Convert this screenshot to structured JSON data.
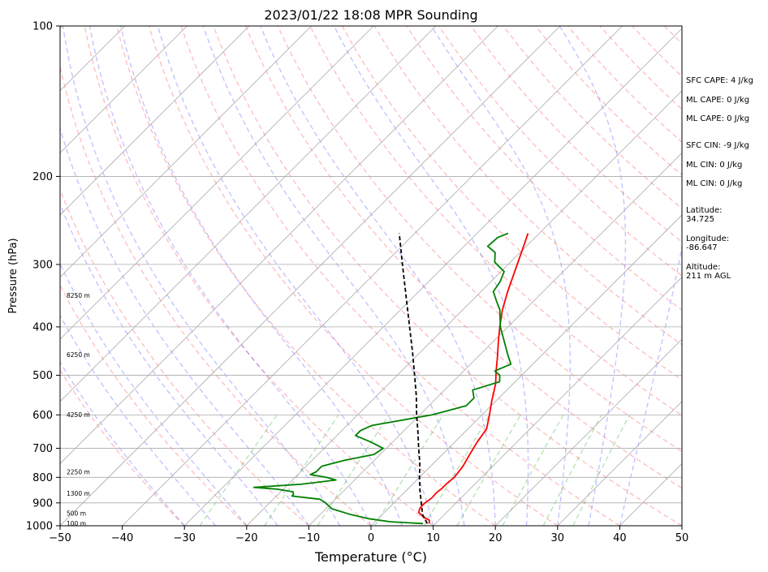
{
  "chart_data": {
    "type": "line",
    "title": "2023/01/22 18:08 MPR Sounding",
    "xlabel": "Temperature (°C)",
    "ylabel": "Pressure (hPa)",
    "xlim": [
      -50,
      50
    ],
    "ylim": [
      1000,
      100
    ],
    "y_scale": "log",
    "grid": true,
    "x_ticks": [
      -50,
      -40,
      -30,
      -20,
      -10,
      0,
      10,
      20,
      30,
      40,
      50
    ],
    "y_ticks": [
      100,
      200,
      300,
      400,
      500,
      600,
      700,
      800,
      900,
      1000
    ],
    "height_labels": [
      {
        "p": 993,
        "text": "100 m"
      },
      {
        "p": 948,
        "text": "500 m"
      },
      {
        "p": 865,
        "text": "1300 m"
      },
      {
        "p": 783,
        "text": "2250 m"
      },
      {
        "p": 602,
        "text": "4250 m"
      },
      {
        "p": 456,
        "text": "6250 m"
      },
      {
        "p": 347,
        "text": "8250 m"
      }
    ],
    "series": [
      {
        "color": "#ff0000",
        "points": [
          [
            990,
            9.0
          ],
          [
            975,
            8.5
          ],
          [
            960,
            7.0
          ],
          [
            940,
            5.5
          ],
          [
            920,
            5.0
          ],
          [
            900,
            5.0
          ],
          [
            880,
            5.3
          ],
          [
            860,
            5.2
          ],
          [
            840,
            5.4
          ],
          [
            820,
            5.4
          ],
          [
            800,
            5.6
          ],
          [
            760,
            5.2
          ],
          [
            720,
            4.4
          ],
          [
            680,
            3.6
          ],
          [
            640,
            3.0
          ],
          [
            600,
            1.2
          ],
          [
            560,
            -0.8
          ],
          [
            520,
            -2.8
          ],
          [
            490,
            -4.8
          ],
          [
            460,
            -6.8
          ],
          [
            430,
            -9.0
          ],
          [
            400,
            -11.3
          ],
          [
            370,
            -13.6
          ],
          [
            340,
            -15.7
          ],
          [
            310,
            -17.8
          ],
          [
            290,
            -19.3
          ],
          [
            275,
            -20.5
          ],
          [
            260,
            -21.8
          ]
        ]
      },
      {
        "color": "#008000",
        "points": [
          [
            990,
            8.0
          ],
          [
            982,
            2.5
          ],
          [
            968,
            -1.5
          ],
          [
            950,
            -5.0
          ],
          [
            925,
            -9.0
          ],
          [
            900,
            -11.0
          ],
          [
            885,
            -12.5
          ],
          [
            872,
            -17.5
          ],
          [
            866,
            -17.5
          ],
          [
            855,
            -18.0
          ],
          [
            845,
            -21.0
          ],
          [
            838,
            -25.0
          ],
          [
            826,
            -18.0
          ],
          [
            810,
            -13.0
          ],
          [
            800,
            -15.0
          ],
          [
            790,
            -18.0
          ],
          [
            780,
            -17.5
          ],
          [
            760,
            -17.5
          ],
          [
            740,
            -14.8
          ],
          [
            720,
            -11.0
          ],
          [
            700,
            -10.5
          ],
          [
            680,
            -13.5
          ],
          [
            660,
            -17.0
          ],
          [
            645,
            -17.0
          ],
          [
            630,
            -16.0
          ],
          [
            600,
            -8.0
          ],
          [
            575,
            -4.0
          ],
          [
            555,
            -4.0
          ],
          [
            535,
            -5.5
          ],
          [
            515,
            -2.5
          ],
          [
            500,
            -3.5
          ],
          [
            490,
            -5.0
          ],
          [
            475,
            -3.5
          ],
          [
            455,
            -5.5
          ],
          [
            430,
            -8.0
          ],
          [
            400,
            -11.2
          ],
          [
            370,
            -14.0
          ],
          [
            355,
            -16.0
          ],
          [
            340,
            -18.0
          ],
          [
            325,
            -18.5
          ],
          [
            310,
            -19.5
          ],
          [
            297,
            -22.5
          ],
          [
            284,
            -24.0
          ],
          [
            276,
            -26.2
          ],
          [
            265,
            -26.0
          ],
          [
            260,
            -25.0
          ]
        ]
      },
      {
        "color": "#000000",
        "dash": "5,3",
        "points": [
          [
            990,
            8.7
          ],
          [
            950,
            6.5
          ],
          [
            900,
            4.4
          ],
          [
            850,
            2.2
          ],
          [
            800,
            0.0
          ],
          [
            750,
            -2.2
          ],
          [
            700,
            -4.8
          ],
          [
            650,
            -7.5
          ],
          [
            600,
            -10.5
          ],
          [
            550,
            -13.6
          ],
          [
            500,
            -17.2
          ],
          [
            450,
            -21.2
          ],
          [
            400,
            -25.8
          ],
          [
            350,
            -31.0
          ],
          [
            300,
            -37.0
          ],
          [
            260,
            -42.5
          ]
        ]
      }
    ]
  },
  "stats": {
    "sfc_cape": "SFC CAPE: 4 J/kg",
    "ml_cape": "ML CAPE: 0 J/kg",
    "mu_cape": "ML CAPE: 0 J/kg",
    "sfc_cin": "SFC CIN: -9 J/kg",
    "ml_cin": "ML CIN: 0 J/kg",
    "mu_cin": "ML CIN: 0 J/kg",
    "latitude": "Latitude:\n34.725",
    "longitude": "Longitude:\n-86.647",
    "altitude": "Altitude:\n211 m AGL"
  }
}
